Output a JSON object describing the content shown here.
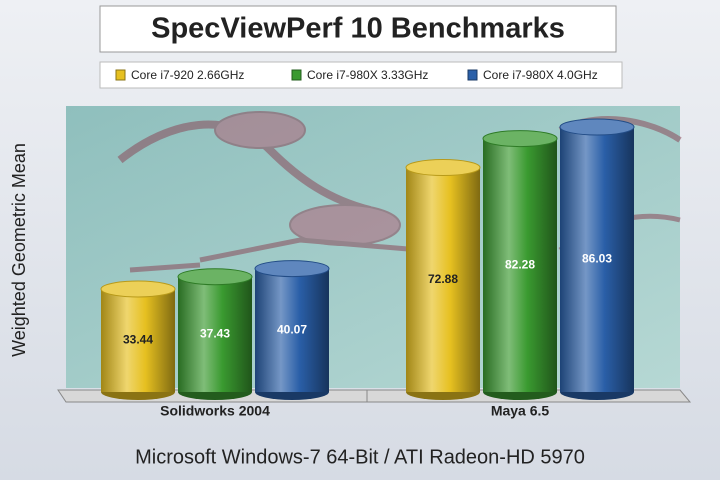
{
  "chart_data": {
    "type": "bar",
    "title": "SpecViewPerf 10 Benchmarks",
    "ylabel": "Weighted Geometric Mean",
    "xlabel": "Microsoft Windows-7 64-Bit / ATI Radeon-HD 5970",
    "categories": [
      "Solidworks 2004",
      "Maya 6.5"
    ],
    "series": [
      {
        "name": "Core i7-920 2.66GHz",
        "color": "#e6c020",
        "values": [
          33.44,
          72.88
        ]
      },
      {
        "name": "Core i7-980X 3.33GHz",
        "color": "#3a9a30",
        "values": [
          37.43,
          82.28
        ]
      },
      {
        "name": "Core i7-980X 4.0GHz",
        "color": "#2a5fa8",
        "values": [
          40.07,
          86.03
        ]
      }
    ],
    "legend": "top"
  }
}
